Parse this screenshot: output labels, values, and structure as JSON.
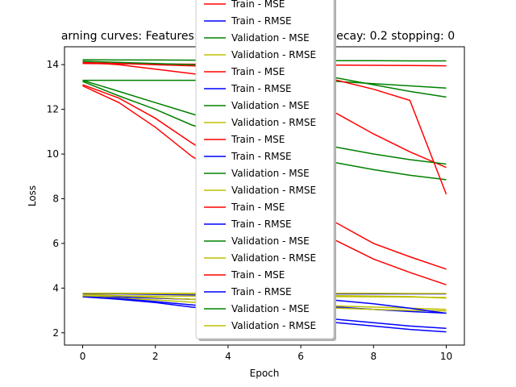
{
  "chart_data": {
    "type": "line",
    "title": "arning curves: Features: 30 In                    ight_decay: 0.2 stopping: 0",
    "xlabel": "Epoch",
    "ylabel": "Loss",
    "xlim": [
      -0.5,
      10.5
    ],
    "ylim": [
      1.45,
      14.8
    ],
    "xticks": [
      0,
      2,
      4,
      6,
      8,
      10
    ],
    "yticks": [
      2,
      4,
      6,
      8,
      10,
      12,
      14
    ],
    "grid": false,
    "legend_placement": "top-center",
    "legend_entries": [
      "Train - MSE",
      "Train - RMSE",
      "Validation - MSE",
      "Validation - RMSE",
      "Train - MSE",
      "Train - RMSE",
      "Validation - MSE",
      "Validation - RMSE",
      "Train - MSE",
      "Train - RMSE",
      "Validation - MSE",
      "Validation - RMSE",
      "Train - MSE",
      "Train - RMSE",
      "Validation - MSE",
      "Validation - RMSE",
      "Train - MSE",
      "Train - RMSE",
      "Validation - MSE",
      "Validation - RMSE"
    ],
    "colors": {
      "Train - MSE": "#ff0000",
      "Train - RMSE": "#0000ff",
      "Validation - MSE": "#008000",
      "Validation - RMSE": "#bfbf00"
    },
    "x": [
      0,
      1,
      2,
      3,
      4,
      5,
      6,
      7,
      8,
      9,
      10
    ],
    "series": [
      {
        "name": "Train - MSE",
        "values": [
          14.05,
          14.04,
          14.03,
          14.02,
          14.01,
          14.0,
          13.99,
          13.98,
          13.97,
          13.96,
          13.95
        ]
      },
      {
        "name": "Train - RMSE",
        "values": [
          3.75,
          3.75,
          3.75,
          3.75,
          3.75,
          3.74,
          3.74,
          3.74,
          3.74,
          3.74,
          3.74
        ]
      },
      {
        "name": "Validation - MSE",
        "values": [
          14.22,
          14.21,
          14.21,
          14.2,
          14.2,
          14.19,
          14.19,
          14.18,
          14.18,
          14.17,
          14.17
        ]
      },
      {
        "name": "Validation - RMSE",
        "values": [
          3.77,
          3.77,
          3.77,
          3.77,
          3.77,
          3.77,
          3.77,
          3.77,
          3.77,
          3.76,
          3.76
        ]
      },
      {
        "name": "Train - MSE",
        "values": [
          14.1,
          14.0,
          13.8,
          13.6,
          13.4,
          13.0,
          12.4,
          11.8,
          10.9,
          10.1,
          9.4
        ]
      },
      {
        "name": "Train - RMSE",
        "values": [
          3.65,
          3.6,
          3.55,
          3.5,
          3.42,
          3.34,
          3.25,
          3.15,
          3.05,
          2.95,
          2.88
        ]
      },
      {
        "name": "Validation - MSE",
        "values": [
          13.3,
          12.8,
          12.3,
          11.8,
          11.3,
          10.9,
          10.6,
          10.3,
          10.0,
          9.75,
          9.55
        ]
      },
      {
        "name": "Validation - RMSE",
        "values": [
          3.72,
          3.66,
          3.58,
          3.5,
          3.42,
          3.33,
          3.25,
          3.2,
          3.15,
          3.1,
          3.05
        ]
      },
      {
        "name": "Train - MSE",
        "values": [
          13.05,
          12.3,
          11.2,
          9.9,
          8.9,
          7.8,
          6.9,
          6.1,
          5.3,
          4.7,
          4.15
        ]
      },
      {
        "name": "Train - RMSE",
        "values": [
          3.61,
          3.5,
          3.35,
          3.15,
          3.0,
          2.8,
          2.6,
          2.45,
          2.3,
          2.15,
          2.04
        ]
      },
      {
        "name": "Validation - MSE",
        "values": [
          13.25,
          12.6,
          12.0,
          11.3,
          10.8,
          10.3,
          9.9,
          9.6,
          9.3,
          9.05,
          8.85
        ]
      },
      {
        "name": "Validation - RMSE",
        "values": [
          3.64,
          3.55,
          3.47,
          3.37,
          3.3,
          3.22,
          3.16,
          3.1,
          3.05,
          3.0,
          2.98
        ]
      },
      {
        "name": "Train - MSE",
        "values": [
          13.1,
          12.5,
          11.6,
          10.5,
          9.5,
          8.6,
          7.7,
          6.9,
          6.0,
          5.4,
          4.85
        ]
      },
      {
        "name": "Train - RMSE",
        "values": [
          3.62,
          3.53,
          3.4,
          3.25,
          3.1,
          2.95,
          2.8,
          2.6,
          2.45,
          2.3,
          2.2
        ]
      },
      {
        "name": "Validation - MSE",
        "values": [
          13.3,
          13.3,
          13.3,
          13.3,
          13.3,
          13.3,
          13.3,
          13.25,
          13.15,
          13.05,
          12.95
        ]
      },
      {
        "name": "Validation - RMSE",
        "values": [
          3.65,
          3.65,
          3.64,
          3.64,
          3.64,
          3.63,
          3.63,
          3.62,
          3.61,
          3.6,
          3.58
        ]
      },
      {
        "name": "Train - MSE",
        "values": [
          14.1,
          14.05,
          14.0,
          13.95,
          13.9,
          13.8,
          13.6,
          13.3,
          12.9,
          12.4,
          8.2
        ]
      },
      {
        "name": "Train - RMSE",
        "values": [
          3.75,
          3.74,
          3.72,
          3.7,
          3.67,
          3.63,
          3.55,
          3.45,
          3.3,
          3.1,
          2.87
        ]
      },
      {
        "name": "Validation - MSE",
        "values": [
          14.15,
          14.1,
          14.05,
          14.0,
          13.9,
          13.8,
          13.6,
          13.4,
          13.1,
          12.8,
          12.55
        ]
      },
      {
        "name": "Validation - RMSE",
        "values": [
          3.77,
          3.76,
          3.75,
          3.74,
          3.72,
          3.7,
          3.68,
          3.66,
          3.64,
          3.62,
          3.55
        ]
      }
    ]
  }
}
